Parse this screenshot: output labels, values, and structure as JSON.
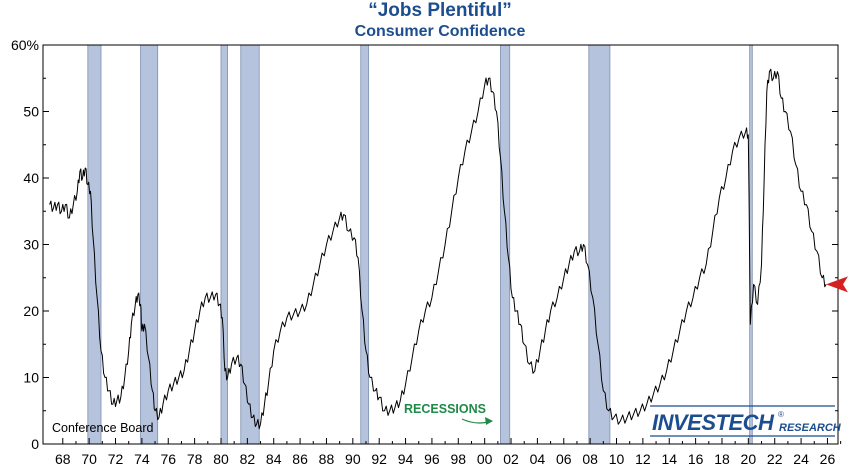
{
  "chart_data": {
    "type": "line",
    "title": "“Jobs Plentiful”",
    "subtitle": "Consumer Confidence",
    "source": "Conference Board",
    "recession_label": "RECESSIONS",
    "brand": {
      "main": "INVESTECH",
      "sub": "RESEARCH",
      "reg": "®"
    },
    "xlim": [
      1966.5,
      2026.8
    ],
    "ylim": [
      0,
      60
    ],
    "y_ticks": [
      0,
      10,
      20,
      30,
      40,
      50,
      60
    ],
    "y_tick_labels": [
      "0",
      "10",
      "20",
      "30",
      "40",
      "50",
      "60%"
    ],
    "x_ticks": [
      1968,
      1970,
      1972,
      1974,
      1976,
      1978,
      1980,
      1982,
      1984,
      1986,
      1988,
      1990,
      1992,
      1994,
      1996,
      1998,
      2000,
      2002,
      2004,
      2006,
      2008,
      2010,
      2012,
      2014,
      2016,
      2018,
      2020,
      2022,
      2024,
      2026
    ],
    "x_tick_labels": [
      "68",
      "70",
      "72",
      "74",
      "76",
      "78",
      "80",
      "82",
      "84",
      "86",
      "88",
      "90",
      "92",
      "94",
      "96",
      "98",
      "00",
      "02",
      "04",
      "06",
      "08",
      "10",
      "12",
      "14",
      "16",
      "18",
      "20",
      "22",
      "24",
      "26"
    ],
    "recessions": [
      [
        1969.9,
        1970.9
      ],
      [
        1973.9,
        1975.2
      ],
      [
        1980.0,
        1980.5
      ],
      [
        1981.5,
        1982.9
      ],
      [
        1990.6,
        1991.2
      ],
      [
        2001.2,
        2001.9
      ],
      [
        2007.9,
        2009.5
      ],
      [
        2020.1,
        2020.3
      ]
    ],
    "series": [
      {
        "values": [
          [
            1967.0,
            36
          ],
          [
            1967.3,
            35.5
          ],
          [
            1967.6,
            36
          ],
          [
            1967.9,
            35
          ],
          [
            1968.2,
            36
          ],
          [
            1968.5,
            34
          ],
          [
            1968.8,
            36
          ],
          [
            1969.1,
            38
          ],
          [
            1969.3,
            41
          ],
          [
            1969.5,
            40
          ],
          [
            1969.7,
            41.5
          ],
          [
            1969.9,
            39
          ],
          [
            1970.1,
            38
          ],
          [
            1970.3,
            31
          ],
          [
            1970.6,
            22
          ],
          [
            1970.9,
            14
          ],
          [
            1971.2,
            10
          ],
          [
            1971.5,
            8
          ],
          [
            1971.8,
            6
          ],
          [
            1972.1,
            6.5
          ],
          [
            1972.4,
            7
          ],
          [
            1972.7,
            10
          ],
          [
            1973.0,
            14
          ],
          [
            1973.2,
            18
          ],
          [
            1973.5,
            21
          ],
          [
            1973.7,
            22.5
          ],
          [
            1973.9,
            21
          ],
          [
            1974.0,
            17
          ],
          [
            1974.2,
            18
          ],
          [
            1974.5,
            13
          ],
          [
            1974.8,
            8
          ],
          [
            1975.0,
            5
          ],
          [
            1975.3,
            4
          ],
          [
            1975.6,
            6
          ],
          [
            1976.0,
            8
          ],
          [
            1976.4,
            9
          ],
          [
            1976.8,
            10
          ],
          [
            1977.2,
            11
          ],
          [
            1977.6,
            14
          ],
          [
            1978.0,
            17
          ],
          [
            1978.4,
            20
          ],
          [
            1978.8,
            22
          ],
          [
            1979.2,
            22
          ],
          [
            1979.6,
            22.5
          ],
          [
            1979.9,
            21
          ],
          [
            1980.1,
            19
          ],
          [
            1980.3,
            11
          ],
          [
            1980.5,
            10
          ],
          [
            1980.8,
            12
          ],
          [
            1981.2,
            13
          ],
          [
            1981.5,
            12
          ],
          [
            1981.8,
            9
          ],
          [
            1982.1,
            6
          ],
          [
            1982.4,
            4
          ],
          [
            1982.7,
            3
          ],
          [
            1983.0,
            3
          ],
          [
            1983.3,
            6
          ],
          [
            1983.6,
            9
          ],
          [
            1984.0,
            14
          ],
          [
            1984.5,
            17
          ],
          [
            1985.0,
            19
          ],
          [
            1985.5,
            19.5
          ],
          [
            1986.0,
            20
          ],
          [
            1986.5,
            21
          ],
          [
            1987.0,
            24
          ],
          [
            1987.5,
            27
          ],
          [
            1988.0,
            30
          ],
          [
            1988.5,
            32
          ],
          [
            1989.0,
            34
          ],
          [
            1989.3,
            34.5
          ],
          [
            1989.7,
            32
          ],
          [
            1990.1,
            31
          ],
          [
            1990.4,
            28
          ],
          [
            1990.7,
            20
          ],
          [
            1991.0,
            14
          ],
          [
            1991.3,
            10
          ],
          [
            1991.7,
            8
          ],
          [
            1992.0,
            7
          ],
          [
            1992.4,
            5
          ],
          [
            1992.8,
            5
          ],
          [
            1993.2,
            5.5
          ],
          [
            1993.6,
            6.5
          ],
          [
            1994.0,
            9
          ],
          [
            1994.5,
            13
          ],
          [
            1995.0,
            17
          ],
          [
            1995.5,
            20
          ],
          [
            1996.0,
            22
          ],
          [
            1996.5,
            26
          ],
          [
            1997.0,
            30
          ],
          [
            1997.5,
            35
          ],
          [
            1998.0,
            40
          ],
          [
            1998.5,
            44
          ],
          [
            1999.0,
            47
          ],
          [
            1999.5,
            50
          ],
          [
            2000.0,
            54
          ],
          [
            2000.3,
            55
          ],
          [
            2000.6,
            53
          ],
          [
            2000.9,
            50
          ],
          [
            2001.2,
            43
          ],
          [
            2001.5,
            35
          ],
          [
            2001.8,
            28
          ],
          [
            2002.1,
            22
          ],
          [
            2002.4,
            20
          ],
          [
            2002.7,
            18
          ],
          [
            2003.0,
            15
          ],
          [
            2003.4,
            12
          ],
          [
            2003.8,
            11
          ],
          [
            2004.2,
            14
          ],
          [
            2004.6,
            17
          ],
          [
            2005.0,
            20
          ],
          [
            2005.5,
            22
          ],
          [
            2006.0,
            25
          ],
          [
            2006.4,
            27
          ],
          [
            2006.8,
            29
          ],
          [
            2007.2,
            29
          ],
          [
            2007.5,
            30
          ],
          [
            2007.8,
            27
          ],
          [
            2008.2,
            22
          ],
          [
            2008.6,
            15
          ],
          [
            2009.0,
            8
          ],
          [
            2009.4,
            5
          ],
          [
            2009.8,
            4
          ],
          [
            2010.3,
            3.5
          ],
          [
            2010.8,
            4
          ],
          [
            2011.3,
            4.5
          ],
          [
            2011.8,
            5
          ],
          [
            2012.3,
            6
          ],
          [
            2012.8,
            7.5
          ],
          [
            2013.3,
            9
          ],
          [
            2013.8,
            11
          ],
          [
            2014.3,
            14
          ],
          [
            2014.8,
            17
          ],
          [
            2015.3,
            20
          ],
          [
            2015.8,
            22
          ],
          [
            2016.3,
            25
          ],
          [
            2016.8,
            27
          ],
          [
            2017.3,
            32
          ],
          [
            2017.8,
            37
          ],
          [
            2018.3,
            40
          ],
          [
            2018.8,
            44
          ],
          [
            2019.3,
            46
          ],
          [
            2019.8,
            47
          ],
          [
            2020.0,
            46.5
          ],
          [
            2020.15,
            18
          ],
          [
            2020.4,
            24
          ],
          [
            2020.7,
            21
          ],
          [
            2021.0,
            27
          ],
          [
            2021.2,
            40
          ],
          [
            2021.4,
            53
          ],
          [
            2021.6,
            56
          ],
          [
            2021.9,
            55
          ],
          [
            2022.2,
            56
          ],
          [
            2022.5,
            52
          ],
          [
            2022.8,
            50
          ],
          [
            2023.2,
            47
          ],
          [
            2023.6,
            42
          ],
          [
            2024.0,
            38
          ],
          [
            2024.4,
            36
          ],
          [
            2024.8,
            32
          ],
          [
            2025.2,
            29
          ],
          [
            2025.6,
            25
          ],
          [
            2025.9,
            24
          ]
        ]
      }
    ],
    "current_marker": {
      "value": 24,
      "color": "#d62020"
    },
    "colors": {
      "title": "#1c4e8f",
      "recession": "#b6c3dd",
      "recession_edge": "#7f8fb0",
      "line": "#000000",
      "recession_label": "#1e8a48",
      "brand": "#1c4e8f"
    }
  }
}
